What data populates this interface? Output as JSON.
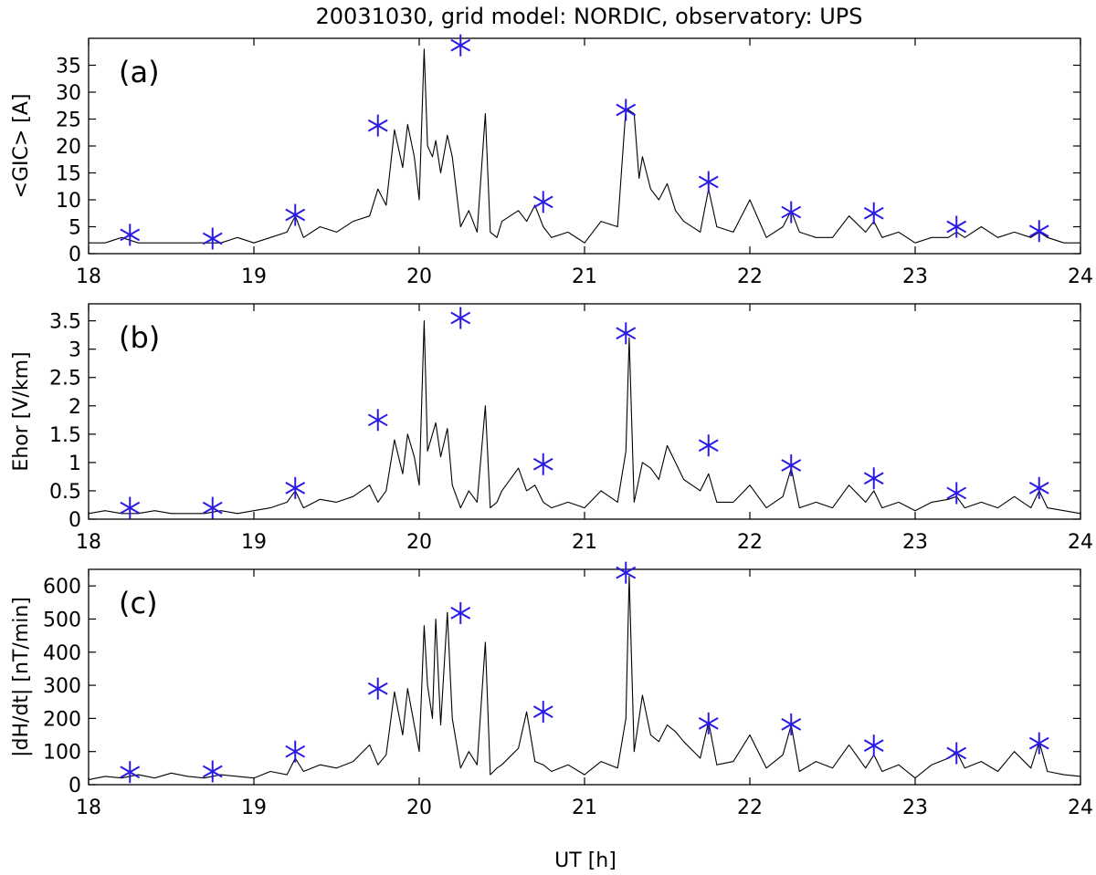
{
  "title": "20031030, grid model: NORDIC, observatory: UPS",
  "xlabel": "UT [h]",
  "colors": {
    "line": "#000000",
    "marker": "#2a1ae6"
  },
  "chart_data": [
    {
      "type": "line",
      "panel_label": "(a)",
      "ylabel": "<GIC> [A]",
      "xlim": [
        18,
        24
      ],
      "ylim": [
        0,
        40
      ],
      "x_ticks": [
        18,
        19,
        20,
        21,
        22,
        23,
        24
      ],
      "y_ticks": [
        0,
        5,
        10,
        15,
        20,
        25,
        30,
        35
      ],
      "series": [
        {
          "kind": "line",
          "x": [
            18.0,
            18.1,
            18.2,
            18.3,
            18.4,
            18.5,
            18.6,
            18.7,
            18.8,
            18.9,
            19.0,
            19.1,
            19.2,
            19.25,
            19.3,
            19.4,
            19.5,
            19.6,
            19.7,
            19.75,
            19.8,
            19.85,
            19.9,
            19.93,
            19.97,
            20.0,
            20.03,
            20.05,
            20.08,
            20.1,
            20.13,
            20.17,
            20.2,
            20.25,
            20.3,
            20.35,
            20.4,
            20.43,
            20.47,
            20.5,
            20.6,
            20.65,
            20.7,
            20.75,
            20.8,
            20.9,
            21.0,
            21.1,
            21.2,
            21.25,
            21.3,
            21.33,
            21.35,
            21.4,
            21.45,
            21.5,
            21.55,
            21.6,
            21.7,
            21.75,
            21.8,
            21.9,
            22.0,
            22.1,
            22.2,
            22.25,
            22.3,
            22.4,
            22.5,
            22.6,
            22.7,
            22.75,
            22.8,
            22.9,
            23.0,
            23.1,
            23.2,
            23.25,
            23.3,
            23.4,
            23.5,
            23.6,
            23.7,
            23.75,
            23.8,
            23.9,
            24.0
          ],
          "y": [
            2,
            2,
            3,
            2,
            2,
            2,
            2,
            2,
            2,
            3,
            2,
            3,
            4,
            7,
            3,
            5,
            4,
            6,
            7,
            12,
            9,
            23,
            16,
            24,
            18,
            10,
            38,
            20,
            18,
            21,
            15,
            22,
            18,
            5,
            8,
            4,
            26,
            4,
            3,
            6,
            8,
            6,
            9,
            5,
            3,
            4,
            2,
            6,
            5,
            27,
            26,
            14,
            18,
            12,
            10,
            13,
            8,
            6,
            4,
            12,
            5,
            4,
            10,
            3,
            5,
            8,
            4,
            3,
            3,
            7,
            4,
            6,
            3,
            4,
            2,
            3,
            3,
            4,
            3,
            5,
            3,
            4,
            3,
            4,
            3,
            2,
            2
          ]
        },
        {
          "kind": "markers",
          "x": [
            18.25,
            18.75,
            19.25,
            19.75,
            20.25,
            20.75,
            21.25,
            21.75,
            22.25,
            22.75,
            23.25,
            23.75
          ],
          "y": [
            3.5,
            2.8,
            7.2,
            23.8,
            38.7,
            9.6,
            26.7,
            13.3,
            7.7,
            7.5,
            5.0,
            4.2
          ]
        }
      ]
    },
    {
      "type": "line",
      "panel_label": "(b)",
      "ylabel": "Ehor [V/km]",
      "xlim": [
        18,
        24
      ],
      "ylim": [
        0,
        3.8
      ],
      "x_ticks": [
        18,
        19,
        20,
        21,
        22,
        23,
        24
      ],
      "y_ticks": [
        0,
        0.5,
        1,
        1.5,
        2,
        2.5,
        3,
        3.5
      ],
      "y_tick_labels": [
        "0",
        "0.5",
        "1",
        "1.5",
        "2",
        "2.5",
        "3",
        "3.5"
      ],
      "series": [
        {
          "kind": "line",
          "x": [
            18.0,
            18.1,
            18.2,
            18.3,
            18.4,
            18.5,
            18.6,
            18.7,
            18.8,
            18.9,
            19.0,
            19.1,
            19.2,
            19.25,
            19.3,
            19.4,
            19.5,
            19.6,
            19.7,
            19.75,
            19.8,
            19.85,
            19.9,
            19.93,
            19.97,
            20.0,
            20.03,
            20.05,
            20.08,
            20.1,
            20.13,
            20.17,
            20.2,
            20.25,
            20.3,
            20.35,
            20.4,
            20.43,
            20.47,
            20.5,
            20.6,
            20.65,
            20.7,
            20.75,
            20.8,
            20.9,
            21.0,
            21.1,
            21.2,
            21.25,
            21.27,
            21.3,
            21.35,
            21.4,
            21.45,
            21.5,
            21.55,
            21.6,
            21.7,
            21.75,
            21.8,
            21.9,
            22.0,
            22.1,
            22.2,
            22.25,
            22.3,
            22.4,
            22.5,
            22.6,
            22.7,
            22.75,
            22.8,
            22.9,
            23.0,
            23.1,
            23.2,
            23.25,
            23.3,
            23.4,
            23.5,
            23.6,
            23.7,
            23.75,
            23.8,
            23.9,
            24.0
          ],
          "y": [
            0.1,
            0.15,
            0.1,
            0.1,
            0.15,
            0.1,
            0.1,
            0.1,
            0.15,
            0.1,
            0.15,
            0.2,
            0.3,
            0.5,
            0.2,
            0.35,
            0.3,
            0.4,
            0.6,
            0.3,
            0.5,
            1.4,
            0.8,
            1.5,
            1.1,
            0.6,
            3.5,
            1.2,
            1.5,
            1.7,
            1.1,
            1.6,
            0.6,
            0.2,
            0.5,
            0.3,
            2.0,
            0.2,
            0.3,
            0.5,
            0.9,
            0.5,
            0.6,
            0.3,
            0.2,
            0.3,
            0.2,
            0.5,
            0.3,
            1.2,
            3.2,
            0.3,
            1.0,
            0.9,
            0.7,
            1.3,
            1.0,
            0.7,
            0.5,
            0.8,
            0.3,
            0.3,
            0.6,
            0.2,
            0.4,
            0.9,
            0.2,
            0.3,
            0.2,
            0.6,
            0.3,
            0.5,
            0.2,
            0.3,
            0.15,
            0.3,
            0.35,
            0.4,
            0.2,
            0.3,
            0.2,
            0.4,
            0.2,
            0.5,
            0.2,
            0.15,
            0.1
          ]
        },
        {
          "kind": "markers",
          "x": [
            18.25,
            18.75,
            19.25,
            19.75,
            20.25,
            20.75,
            21.25,
            21.75,
            22.25,
            22.75,
            23.25,
            23.75
          ],
          "y": [
            0.2,
            0.2,
            0.55,
            1.75,
            3.55,
            0.97,
            3.28,
            1.3,
            0.95,
            0.72,
            0.46,
            0.55
          ]
        }
      ]
    },
    {
      "type": "line",
      "panel_label": "(c)",
      "ylabel": "|dH/dt| [nT/min]",
      "xlim": [
        18,
        24
      ],
      "ylim": [
        0,
        650
      ],
      "x_ticks": [
        18,
        19,
        20,
        21,
        22,
        23,
        24
      ],
      "y_ticks": [
        0,
        100,
        200,
        300,
        400,
        500,
        600
      ],
      "series": [
        {
          "kind": "line",
          "x": [
            18.0,
            18.1,
            18.2,
            18.3,
            18.4,
            18.5,
            18.6,
            18.7,
            18.8,
            18.9,
            19.0,
            19.1,
            19.2,
            19.25,
            19.3,
            19.4,
            19.5,
            19.6,
            19.7,
            19.75,
            19.8,
            19.85,
            19.9,
            19.93,
            19.97,
            20.0,
            20.03,
            20.05,
            20.08,
            20.1,
            20.13,
            20.17,
            20.2,
            20.25,
            20.3,
            20.35,
            20.4,
            20.43,
            20.47,
            20.5,
            20.6,
            20.65,
            20.7,
            20.75,
            20.8,
            20.9,
            21.0,
            21.1,
            21.2,
            21.25,
            21.27,
            21.3,
            21.35,
            21.4,
            21.45,
            21.5,
            21.55,
            21.6,
            21.7,
            21.75,
            21.8,
            21.9,
            22.0,
            22.1,
            22.2,
            22.25,
            22.3,
            22.4,
            22.5,
            22.6,
            22.7,
            22.75,
            22.8,
            22.9,
            23.0,
            23.1,
            23.2,
            23.25,
            23.3,
            23.4,
            23.5,
            23.6,
            23.7,
            23.75,
            23.8,
            23.9,
            24.0
          ],
          "y": [
            15,
            25,
            20,
            30,
            20,
            35,
            25,
            20,
            30,
            25,
            20,
            40,
            30,
            80,
            40,
            60,
            50,
            70,
            120,
            60,
            90,
            280,
            150,
            290,
            180,
            100,
            480,
            300,
            200,
            500,
            180,
            520,
            200,
            50,
            100,
            60,
            430,
            30,
            50,
            60,
            110,
            220,
            70,
            60,
            40,
            60,
            30,
            70,
            50,
            200,
            630,
            100,
            270,
            150,
            130,
            180,
            160,
            130,
            80,
            190,
            60,
            70,
            150,
            50,
            90,
            180,
            40,
            70,
            50,
            120,
            50,
            90,
            40,
            60,
            20,
            60,
            80,
            100,
            50,
            70,
            40,
            100,
            50,
            130,
            40,
            30,
            25
          ]
        },
        {
          "kind": "markers",
          "x": [
            18.25,
            18.75,
            19.25,
            19.75,
            20.25,
            20.75,
            21.25,
            21.75,
            22.25,
            22.75,
            23.25,
            23.75
          ],
          "y": [
            38,
            40,
            100,
            290,
            518,
            220,
            640,
            185,
            182,
            118,
            95,
            125
          ]
        }
      ]
    }
  ]
}
